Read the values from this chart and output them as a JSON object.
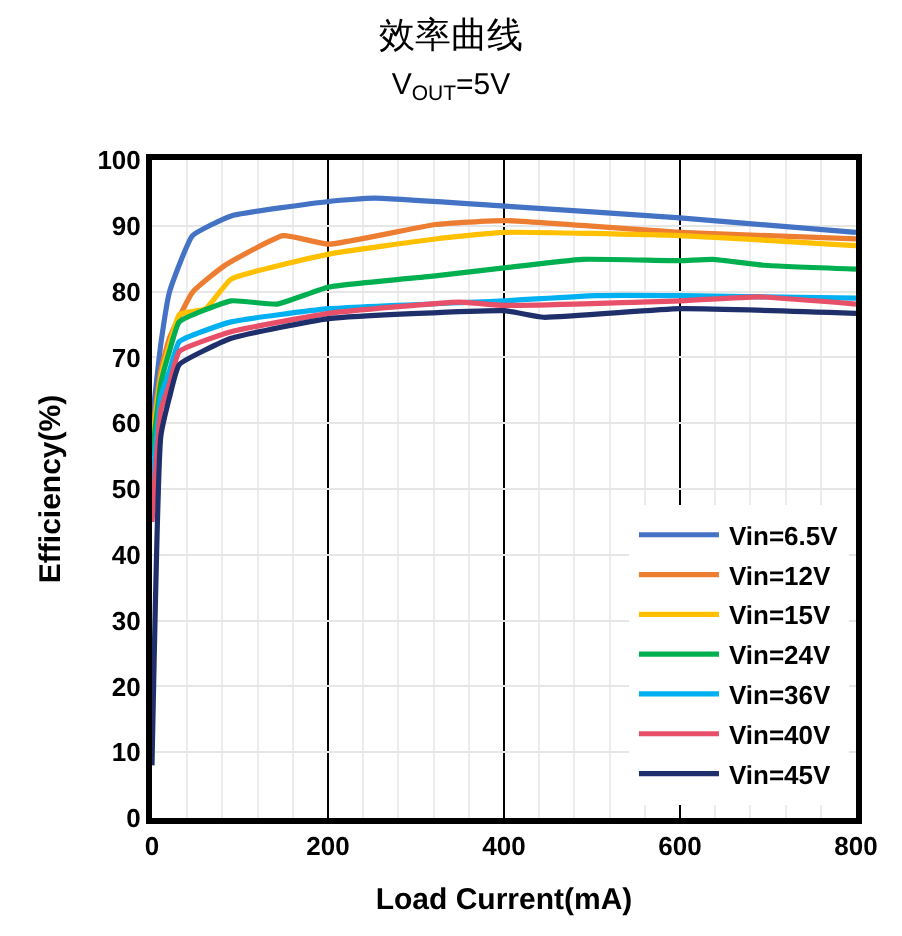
{
  "chart_data": {
    "type": "line",
    "title": "效率曲线",
    "subtitle": "V$_{OUT}$=5V",
    "xlabel": "Load Current(mA)",
    "ylabel": "Efficiency(%)",
    "xlim": [
      0,
      800
    ],
    "xticks": [
      0,
      200,
      400,
      600,
      800
    ],
    "ylim": [
      0,
      100
    ],
    "yticks": [
      0,
      10,
      20,
      30,
      40,
      50,
      60,
      70,
      80,
      90,
      100
    ],
    "grid": true,
    "legend": "bottom right",
    "marker": "none",
    "line_style": "solid",
    "series": [
      {
        "name": "Vin=6.5V",
        "color": "#4472c4",
        "x": [
          0,
          10,
          20,
          46,
          90,
          201,
          253,
          400,
          600,
          800
        ],
        "values": [
          60,
          72,
          80,
          88.5,
          91.5,
          93.7,
          94.2,
          93,
          91.2,
          89
        ]
      },
      {
        "name": "Vin=12V",
        "color": "#ed7d31",
        "x": [
          0,
          10,
          20,
          46,
          83,
          149,
          201,
          322,
          400,
          600,
          800
        ],
        "values": [
          58,
          68,
          73,
          79.9,
          84,
          88.5,
          87.2,
          90.2,
          90.8,
          89,
          88
        ]
      },
      {
        "name": "Vin=15V",
        "color": "#ffc000",
        "x": [
          0,
          10,
          20,
          31,
          61,
          90,
          201,
          322,
          400,
          600,
          800
        ],
        "values": [
          57,
          67,
          72,
          76.5,
          77.4,
          81.9,
          85.7,
          88,
          89,
          88.5,
          87
        ]
      },
      {
        "name": "Vin=24V",
        "color": "#00b050",
        "x": [
          0,
          10,
          20,
          31,
          90,
          142,
          201,
          322,
          400,
          489,
          600,
          637,
          696,
          800
        ],
        "values": [
          55,
          66,
          71,
          75.4,
          78.6,
          78.1,
          80.7,
          82.4,
          83.6,
          84.9,
          84.7,
          84.9,
          84,
          83.4
        ]
      },
      {
        "name": "Vin=36V",
        "color": "#00b0f0",
        "x": [
          0,
          10,
          20,
          31,
          90,
          201,
          400,
          504,
          600,
          800
        ],
        "values": [
          50,
          64,
          68,
          72.4,
          75.4,
          77.4,
          78.6,
          79.4,
          79.4,
          79
        ]
      },
      {
        "name": "Vin=40V",
        "color": "#e8506a",
        "x": [
          0,
          10,
          20,
          31,
          90,
          201,
          349,
          400,
          600,
          689,
          800
        ],
        "values": [
          45,
          62,
          66,
          70.9,
          73.9,
          76.7,
          78.4,
          77.9,
          78.6,
          79.2,
          78.1
        ]
      },
      {
        "name": "Vin=45V",
        "color": "#1f2f6b",
        "x": [
          0,
          10,
          20,
          31,
          90,
          201,
          400,
          445,
          600,
          800
        ],
        "values": [
          8,
          58,
          64,
          68.9,
          72.9,
          75.9,
          77.1,
          76.1,
          77.4,
          76.7
        ]
      }
    ]
  }
}
